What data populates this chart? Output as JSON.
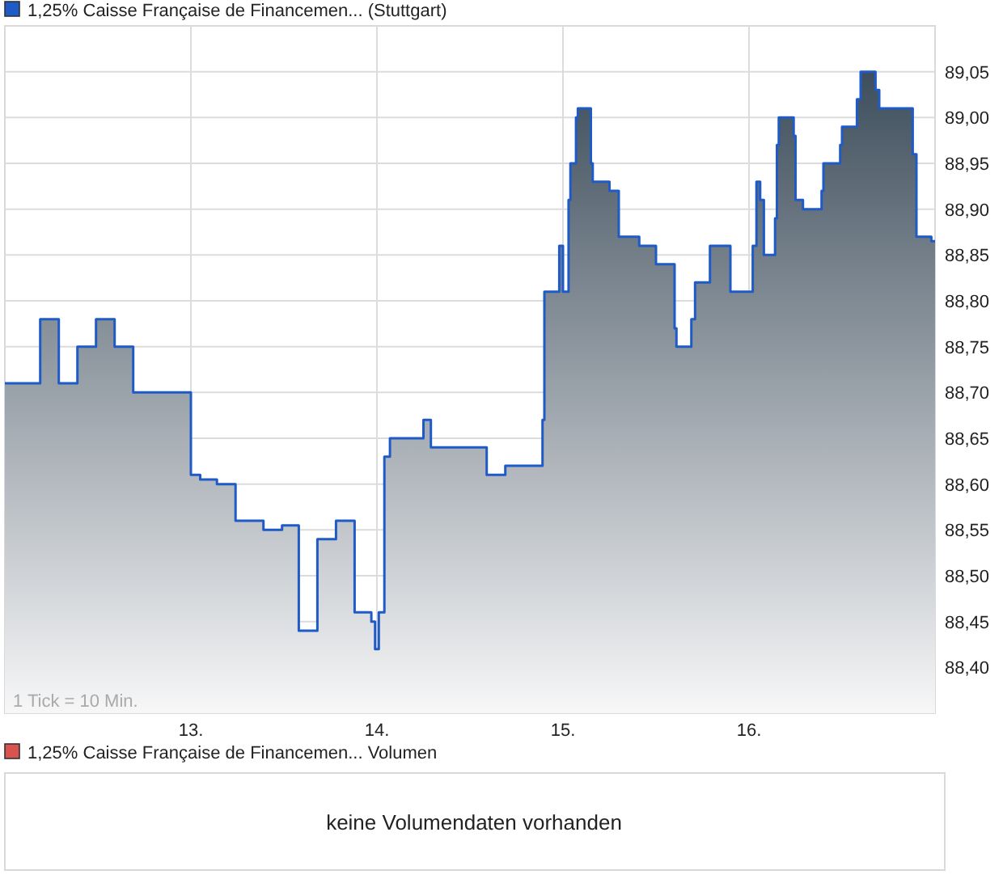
{
  "chart_data": [
    {
      "type": "area",
      "legend": "top left",
      "grid": true,
      "xlim": [
        12,
        17
      ],
      "xticks": [
        {
          "value": 13,
          "label": "13."
        },
        {
          "value": 14,
          "label": "14."
        },
        {
          "value": 15,
          "label": "15."
        },
        {
          "value": 16,
          "label": "16."
        }
      ],
      "ylim": [
        88.35,
        89.1
      ],
      "yticks": [
        {
          "value": 88.4,
          "label": "88,40"
        },
        {
          "value": 88.45,
          "label": "88,45"
        },
        {
          "value": 88.5,
          "label": "88,50"
        },
        {
          "value": 88.55,
          "label": "88,55"
        },
        {
          "value": 88.6,
          "label": "88,60"
        },
        {
          "value": 88.65,
          "label": "88,65"
        },
        {
          "value": 88.7,
          "label": "88,70"
        },
        {
          "value": 88.75,
          "label": "88,75"
        },
        {
          "value": 88.8,
          "label": "88,80"
        },
        {
          "value": 88.85,
          "label": "88,85"
        },
        {
          "value": 88.9,
          "label": "88,90"
        },
        {
          "value": 88.95,
          "label": "88,95"
        },
        {
          "value": 89,
          "label": "89,00"
        },
        {
          "value": 89.05,
          "label": "89,05"
        }
      ],
      "annotations": [
        "1 Tick = 10 Min."
      ],
      "x": [
        12.0,
        12.19,
        12.19,
        12.29,
        12.29,
        12.39,
        12.39,
        12.49,
        12.49,
        12.59,
        12.59,
        12.69,
        12.69,
        13.0,
        13.0,
        13.05,
        13.05,
        13.14,
        13.14,
        13.24,
        13.24,
        13.39,
        13.39,
        13.49,
        13.49,
        13.58,
        13.58,
        13.68,
        13.68,
        13.78,
        13.78,
        13.88,
        13.88,
        13.97,
        13.97,
        13.99,
        13.99,
        14.01,
        14.01,
        14.04,
        14.04,
        14.07,
        14.07,
        14.25,
        14.25,
        14.29,
        14.29,
        14.59,
        14.59,
        14.69,
        14.69,
        14.89,
        14.89,
        14.9,
        14.9,
        14.98,
        14.98,
        15.0,
        15.0,
        15.03,
        15.03,
        15.04,
        15.04,
        15.07,
        15.07,
        15.08,
        15.08,
        15.15,
        15.15,
        15.16,
        15.16,
        15.25,
        15.25,
        15.3,
        15.3,
        15.41,
        15.41,
        15.5,
        15.5,
        15.6,
        15.6,
        15.61,
        15.61,
        15.69,
        15.69,
        15.71,
        15.71,
        15.79,
        15.79,
        15.9,
        15.9,
        16.02,
        16.02,
        16.04,
        16.04,
        16.06,
        16.06,
        16.08,
        16.08,
        16.14,
        16.14,
        16.15,
        16.15,
        16.16,
        16.16,
        16.24,
        16.24,
        16.25,
        16.25,
        16.29,
        16.29,
        16.39,
        16.39,
        16.4,
        16.4,
        16.49,
        16.49,
        16.5,
        16.5,
        16.58,
        16.58,
        16.6,
        16.6,
        16.68,
        16.68,
        16.7,
        16.7,
        16.88,
        16.88,
        16.9,
        16.9,
        16.98,
        16.98,
        17.0
      ],
      "series": [
        {
          "name": "1,25% Caisse Française de Financemen... (Stuttgart)",
          "color": "#1f5bc6",
          "values": [
            88.71,
            88.71,
            88.78,
            88.78,
            88.71,
            88.71,
            88.75,
            88.75,
            88.78,
            88.78,
            88.75,
            88.75,
            88.7,
            88.7,
            88.61,
            88.61,
            88.605,
            88.605,
            88.6,
            88.6,
            88.56,
            88.56,
            88.55,
            88.55,
            88.555,
            88.555,
            88.44,
            88.44,
            88.54,
            88.54,
            88.56,
            88.56,
            88.46,
            88.46,
            88.45,
            88.45,
            88.42,
            88.42,
            88.46,
            88.46,
            88.63,
            88.63,
            88.65,
            88.65,
            88.67,
            88.67,
            88.64,
            88.64,
            88.61,
            88.61,
            88.62,
            88.62,
            88.67,
            88.67,
            88.81,
            88.81,
            88.86,
            88.86,
            88.81,
            88.81,
            88.91,
            88.91,
            88.95,
            88.95,
            89.0,
            89.0,
            89.01,
            89.01,
            88.95,
            88.95,
            88.93,
            88.93,
            88.92,
            88.92,
            88.87,
            88.87,
            88.86,
            88.86,
            88.84,
            88.84,
            88.77,
            88.77,
            88.75,
            88.75,
            88.78,
            88.78,
            88.82,
            88.82,
            88.86,
            88.86,
            88.81,
            88.81,
            88.86,
            88.86,
            88.93,
            88.93,
            88.91,
            88.91,
            88.85,
            88.85,
            88.89,
            88.89,
            88.97,
            88.97,
            89.0,
            89.0,
            88.98,
            88.98,
            88.91,
            88.91,
            88.9,
            88.9,
            88.92,
            88.92,
            88.95,
            88.95,
            88.97,
            88.97,
            88.99,
            88.99,
            89.02,
            89.02,
            89.05,
            89.05,
            89.03,
            89.03,
            89.01,
            89.01,
            88.96,
            88.96,
            88.87,
            88.87,
            88.865,
            88.865
          ]
        }
      ]
    },
    {
      "type": "other",
      "legend": "top left",
      "series": [
        {
          "name": "1,25% Caisse Française de Financemen... Volumen",
          "color": "#d9534f"
        }
      ],
      "annotations": [
        "keine Volumendaten vorhanden"
      ]
    }
  ]
}
